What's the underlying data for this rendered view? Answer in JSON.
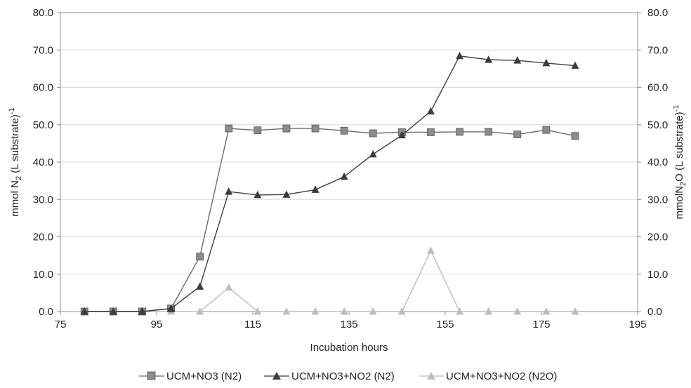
{
  "chart_data": {
    "type": "line",
    "xlabel": "Incubation hours",
    "ylabel_left": {
      "main": "mmol N",
      "sub": "2",
      "rest": " (L substrate)",
      "sup": "-1"
    },
    "ylabel_right": {
      "main": "mmolN",
      "sub": "2",
      "rest": "O (L substrate)",
      "sup": "-1"
    },
    "xlim": [
      75,
      195
    ],
    "ylim": [
      0,
      80
    ],
    "ylim_right": [
      0,
      80
    ],
    "x_ticks": [
      "75",
      "95",
      "115",
      "135",
      "155",
      "175",
      "195"
    ],
    "y_ticks": [
      "0.0",
      "10.0",
      "20.0",
      "30.0",
      "40.0",
      "50.0",
      "60.0",
      "70.0",
      "80.0"
    ],
    "y_ticks_right": [
      "0.0",
      "10.0",
      "20.0",
      "30.0",
      "40.0",
      "50.0",
      "60.0",
      "70.0",
      "80.0"
    ],
    "grid": true,
    "legend_position": "bottom",
    "series": [
      {
        "name": "UCM+NO3 (N2)",
        "marker": "square",
        "color": "#6b6b6b",
        "fill": "#8c8c8c",
        "axis": "left",
        "x": [
          80,
          86,
          92,
          98,
          104,
          110,
          116,
          122,
          128,
          134,
          140,
          146,
          152,
          158,
          164,
          170,
          176,
          182
        ],
        "y": [
          0.0,
          0.0,
          0.0,
          0.8,
          14.7,
          49.0,
          48.5,
          49.0,
          49.0,
          48.4,
          47.7,
          48.0,
          48.0,
          48.1,
          48.1,
          47.4,
          48.6,
          47.0
        ]
      },
      {
        "name": "UCM+NO3+NO2 (N2)",
        "marker": "triangle",
        "color": "#3c3c3c",
        "fill": "#3c3c3c",
        "axis": "left",
        "x": [
          80,
          86,
          92,
          98,
          104,
          110,
          116,
          122,
          128,
          134,
          140,
          146,
          152,
          158,
          164,
          170,
          176,
          182
        ],
        "y": [
          0.0,
          0.0,
          0.0,
          0.8,
          6.7,
          32.1,
          31.2,
          31.3,
          32.6,
          36.1,
          42.1,
          47.2,
          53.6,
          68.4,
          67.4,
          67.2,
          66.5,
          65.8
        ]
      },
      {
        "name": "UCM+NO3+NO2 (N2O)",
        "marker": "triangle",
        "color": "#bdbdbd",
        "fill": "#bdbdbd",
        "axis": "right",
        "x": [
          80,
          86,
          92,
          98,
          104,
          110,
          116,
          122,
          128,
          134,
          140,
          146,
          152,
          158,
          164,
          170,
          176,
          182
        ],
        "y": [
          0.0,
          0.0,
          0.0,
          0.0,
          0.0,
          6.4,
          0.0,
          0.0,
          0.0,
          0.0,
          0.0,
          0.0,
          16.3,
          0.0,
          0.0,
          0.0,
          0.0,
          0.0
        ]
      }
    ]
  }
}
